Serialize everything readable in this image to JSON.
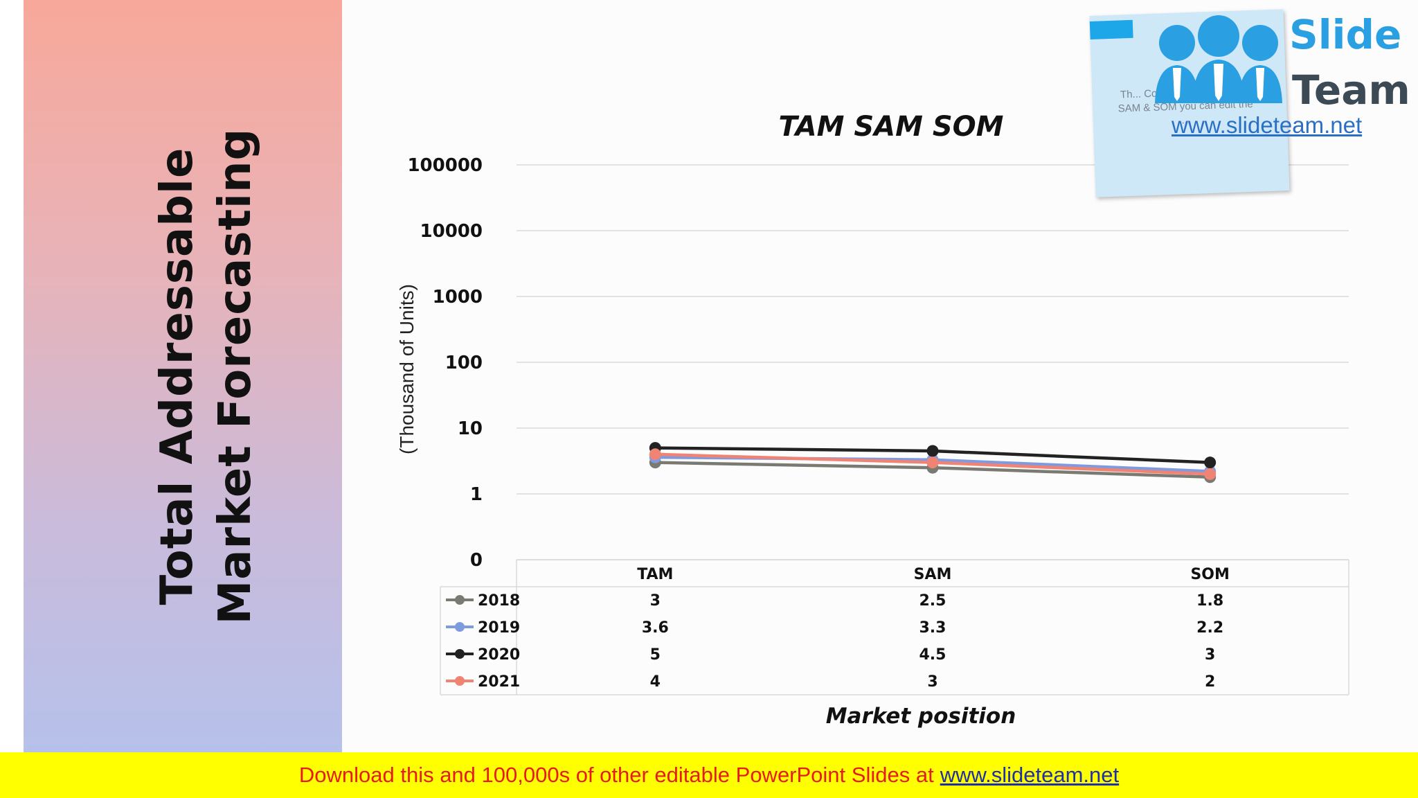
{
  "slide": {
    "title": "Total Addressable Market Forecasting"
  },
  "logo": {
    "brand_top": "Slide",
    "brand_bottom": "Team",
    "url": "www.slideteam.net",
    "card_text": "Th... Comparative ... of TAM SAM & SOM you can edit the ...",
    "colors": {
      "blue": "#2a9fe2",
      "dark": "#3c4a56"
    }
  },
  "footer": {
    "text": "Download this and 100,000s of other editable PowerPoint Slides at",
    "link": "www.slideteam.net",
    "background": "#ffff00",
    "text_color": "#e61c1c"
  },
  "chart_data": {
    "type": "line",
    "title": "TAM SAM SOM",
    "xlabel": "Market position",
    "ylabel": "(Thousand of Units)",
    "y_scale": "log",
    "y_ticks": [
      "100000",
      "10000",
      "1000",
      "100",
      "10",
      "1",
      "0"
    ],
    "y_tick_values": [
      100000,
      10000,
      1000,
      100,
      10,
      1,
      0.1
    ],
    "categories": [
      "TAM",
      "SAM",
      "SOM"
    ],
    "grid": true,
    "legend": "data-table",
    "series": [
      {
        "name": "2018",
        "color": "#7a7a72",
        "values": [
          3,
          2.5,
          1.8
        ]
      },
      {
        "name": "2019",
        "color": "#7f9be0",
        "values": [
          3.6,
          3.3,
          2.2
        ]
      },
      {
        "name": "2020",
        "color": "#222222",
        "values": [
          5,
          4.5,
          3
        ]
      },
      {
        "name": "2021",
        "color": "#f08474",
        "values": [
          4,
          3,
          2
        ]
      }
    ]
  }
}
